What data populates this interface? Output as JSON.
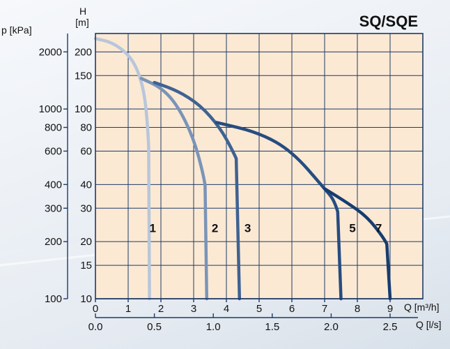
{
  "chart_data": {
    "type": "line",
    "title": "SQ/SQE",
    "x_axis": {
      "unit_label": "Q [m³/h]",
      "ticks": [
        "0",
        "1",
        "2",
        "3",
        "4",
        "5",
        "6",
        "7",
        "8",
        "9"
      ],
      "range": [
        0,
        10
      ]
    },
    "x2_axis": {
      "unit_label": "Q [l/s]",
      "ticks": [
        {
          "value": 0.0,
          "label": "0.0"
        },
        {
          "value": 0.5,
          "label": "0.5"
        },
        {
          "value": 1.0,
          "label": "1.0"
        },
        {
          "value": 1.5,
          "label": "1.5"
        },
        {
          "value": 2.0,
          "label": "2.0"
        },
        {
          "value": 2.5,
          "label": "2.5"
        }
      ]
    },
    "y_axis": {
      "unit_label_top": "H",
      "unit_label": "[m]",
      "scale": "log",
      "range": [
        10,
        250
      ],
      "ticks": [
        {
          "value": 10,
          "label": "10"
        },
        {
          "value": 15,
          "label": "15"
        },
        {
          "value": 20,
          "label": "20"
        },
        {
          "value": 30,
          "label": "30"
        },
        {
          "value": 40,
          "label": "40"
        },
        {
          "value": 60,
          "label": "60"
        },
        {
          "value": 80,
          "label": "80"
        },
        {
          "value": 100,
          "label": "100"
        },
        {
          "value": 150,
          "label": "150"
        },
        {
          "value": 200,
          "label": "200"
        }
      ]
    },
    "p_axis": {
      "unit_label": "p [kPa]",
      "ticks": [
        {
          "value": 100,
          "label": "100"
        },
        {
          "value": 200,
          "label": "200"
        },
        {
          "value": 300,
          "label": "300"
        },
        {
          "value": 400,
          "label": "400"
        },
        {
          "value": 600,
          "label": "600"
        },
        {
          "value": 800,
          "label": "800"
        },
        {
          "value": 1000,
          "label": "1000"
        },
        {
          "value": 2000,
          "label": "2000"
        }
      ]
    },
    "grid": true,
    "series": [
      {
        "name": "1",
        "color": "#b8c6da",
        "x": [
          0,
          0.5,
          1.0,
          1.3,
          1.5,
          1.6,
          1.65,
          1.65
        ],
        "y": [
          235,
          225,
          195,
          160,
          120,
          80,
          50,
          10
        ]
      },
      {
        "name": "2",
        "color": "#7a94b8",
        "x": [
          1.4,
          2.0,
          2.5,
          3.0,
          3.3,
          3.4,
          3.4
        ],
        "y": [
          145,
          130,
          105,
          70,
          45,
          35,
          10
        ]
      },
      {
        "name": "3",
        "color": "#3f6292",
        "x": [
          1.8,
          2.5,
          3.2,
          3.8,
          4.2,
          4.4,
          4.4
        ],
        "y": [
          138,
          125,
          105,
          80,
          60,
          50,
          10
        ]
      },
      {
        "name": "5",
        "color": "#274d80",
        "x": [
          3.7,
          5.0,
          6.0,
          7.0,
          7.3,
          7.5,
          7.5
        ],
        "y": [
          85,
          75,
          60,
          38,
          33,
          25,
          10
        ]
      },
      {
        "name": "7",
        "color": "#173d70",
        "x": [
          7.0,
          7.7,
          8.3,
          8.8,
          9.0,
          9.0
        ],
        "y": [
          38,
          32,
          27,
          21,
          18,
          10
        ]
      }
    ]
  }
}
